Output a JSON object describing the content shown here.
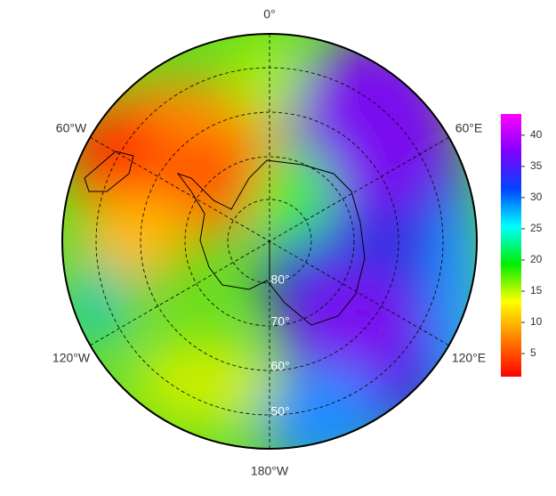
{
  "map": {
    "lon_labels": [
      "0°",
      "60°E",
      "120°E",
      "180°W",
      "120°W",
      "60°W"
    ],
    "lat_labels": [
      "80°",
      "70°",
      "60°",
      "50°"
    ],
    "colorbar": {
      "lim": [
        1.3,
        43.4
      ],
      "ticks": [
        5,
        10,
        15,
        20,
        25,
        30,
        35,
        40
      ],
      "colors": [
        "#ff0000",
        "#ff7f00",
        "#ffff00",
        "#00ee00",
        "#00ffff",
        "#0044ff",
        "#8000ff",
        "#ff00ff"
      ]
    }
  }
}
